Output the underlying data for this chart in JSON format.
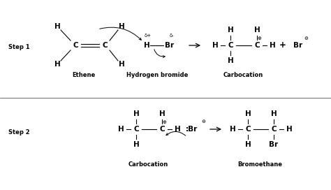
{
  "bg_color": "#ffffff",
  "text_color": "#000000",
  "fig_width": 4.74,
  "fig_height": 2.72,
  "step1_label": "Step 1",
  "step2_label": "Step 2",
  "ethene_label": "Ethene",
  "hbr_label": "Hydrogen bromide",
  "carbocation_label": "Carbocation",
  "bromoethane_label": "Bromoethane",
  "carbocation_label2": "Carbocation",
  "font_size_main": 7.5,
  "font_size_small": 5.5,
  "font_size_label": 6.0
}
